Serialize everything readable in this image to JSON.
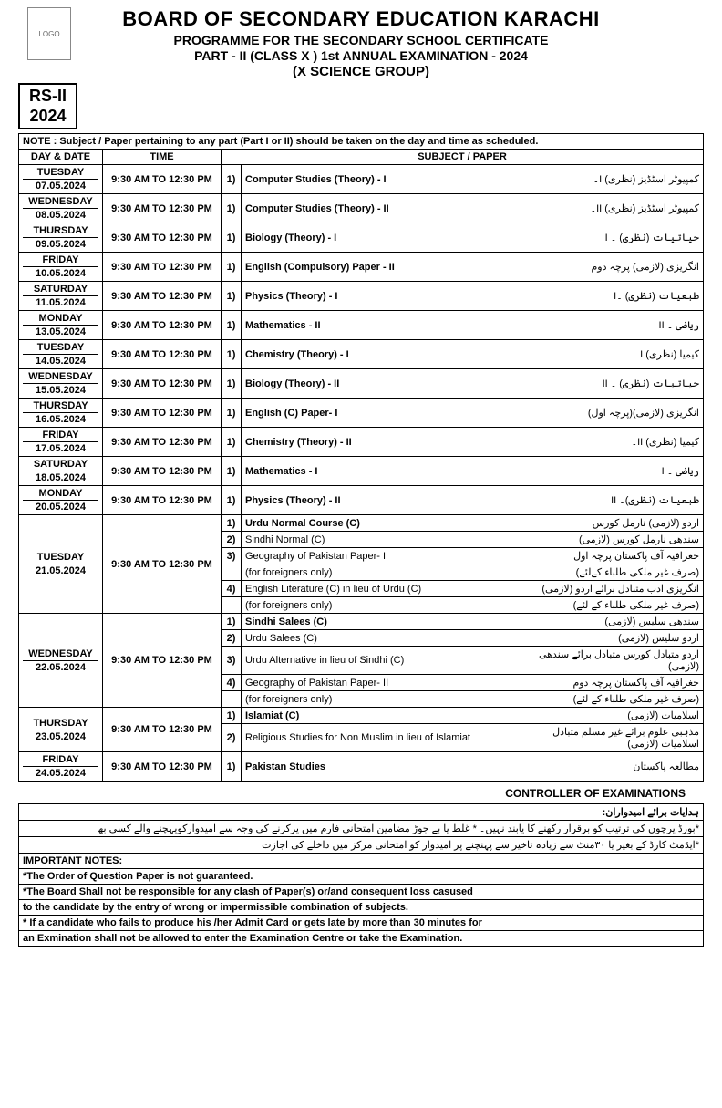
{
  "header": {
    "title": "BOARD OF SECONDARY EDUCATION KARACHI",
    "line2": "PROGRAMME FOR THE SECONDARY SCHOOL CERTIFICATE",
    "line3": "PART - II  (CLASS X ) 1st  ANNUAL EXAMINATION - 2024",
    "line4": "(X SCIENCE GROUP)",
    "rs1": "RS-II",
    "rs2": "2024",
    "logo_alt": "LOGO"
  },
  "note": "NOTE :  Subject / Paper pertaining to any part (Part I or II) should be taken on the day and time as scheduled.",
  "columns": {
    "daydate": "DAY & DATE",
    "time": "TIME",
    "subject": "SUBJECT / PAPER"
  },
  "rows": [
    {
      "day": "TUESDAY",
      "date": "07.05.2024",
      "time": "9:30 AM TO 12:30 PM",
      "papers": [
        {
          "n": "1)",
          "en": "Computer Studies (Theory) - I",
          "ur": "کمپیوٹر اسٹڈیز   (نظری) I۔"
        }
      ]
    },
    {
      "day": "WEDNESDAY",
      "date": "08.05.2024",
      "time": "9:30 AM TO 12:30 PM",
      "papers": [
        {
          "n": "1)",
          "en": "Computer Studies (Theory) - II",
          "ur": "کمپیوٹر اسٹڈیز   (نظری) II۔"
        }
      ]
    },
    {
      "day": "THURSDAY",
      "date": "09.05.2024",
      "time": "9:30 AM TO 12:30 PM",
      "papers": [
        {
          "n": "1)",
          "en": "Biology (Theory) - I",
          "ur": "حیاتیات   (نظری) ۔ I"
        }
      ]
    },
    {
      "day": "FRIDAY",
      "date": "10.05.2024",
      "time": "9:30 AM TO 12:30 PM",
      "papers": [
        {
          "n": "1)",
          "en": "English (Compulsory) Paper - II",
          "ur": "انگریزی (لازمی) پرچہ دوم"
        }
      ]
    },
    {
      "day": "SATURDAY",
      "date": "11.05.2024",
      "time": "9:30 AM TO 12:30 PM",
      "papers": [
        {
          "n": "1)",
          "en": "Physics (Theory) - I",
          "ur": "طبعیات (نظری) ۔I"
        }
      ]
    },
    {
      "day": "MONDAY",
      "date": "13.05.2024",
      "time": "9:30 AM TO 12:30 PM",
      "papers": [
        {
          "n": "1)",
          "en": "Mathematics - II",
          "ur": "ریاضی ۔ II"
        }
      ]
    },
    {
      "day": "TUESDAY",
      "date": "14.05.2024",
      "time": "9:30 AM TO 12:30 PM",
      "papers": [
        {
          "n": "1)",
          "en": "Chemistry (Theory) - I",
          "ur": "کیمیا   (نظری)  I۔"
        }
      ]
    },
    {
      "day": "WEDNESDAY",
      "date": "15.05.2024",
      "time": "9:30 AM TO 12:30 PM",
      "papers": [
        {
          "n": "1)",
          "en": "Biology (Theory) - II",
          "ur": "حیاتیات   (نظری) ۔ II"
        }
      ]
    },
    {
      "day": "THURSDAY",
      "date": "16.05.2024",
      "time": "9:30 AM TO 12:30 PM",
      "papers": [
        {
          "n": "1)",
          "en": "English (C) Paper- I",
          "ur": "انگریزی (لازمی)(پرچہ اول)"
        }
      ]
    },
    {
      "day": "FRIDAY",
      "date": "17.05.2024",
      "time": "9:30 AM TO 12:30 PM",
      "papers": [
        {
          "n": "1)",
          "en": "Chemistry (Theory) - II",
          "ur": "کیمیا   (نظری) II۔"
        }
      ]
    },
    {
      "day": "SATURDAY",
      "date": "18.05.2024",
      "time": "9:30 AM TO 12:30 PM",
      "papers": [
        {
          "n": "1)",
          "en": "Mathematics - I",
          "ur": "ریاضی ۔ I"
        }
      ]
    },
    {
      "day": "MONDAY",
      "date": "20.05.2024",
      "time": "9:30 AM TO 12:30 PM",
      "papers": [
        {
          "n": "1)",
          "en": "Physics (Theory) - II",
          "ur": "طبعیات (نظری)۔ II"
        }
      ]
    },
    {
      "day": "TUESDAY",
      "date": "21.05.2024",
      "time": "9:30 AM TO 12:30 PM",
      "papers": [
        {
          "n": "1)",
          "en": "Urdu Normal Course (C)",
          "ur": "اردو (لازمی) نارمل کورس"
        },
        {
          "n": "2)",
          "en": "Sindhi Normal (C)",
          "ur": "سندھی نارمل کورس (لازمی)",
          "small": true
        },
        {
          "n": "3)",
          "en": "Geography of Pakistan Paper- I",
          "ur": "جغرافیہ آف پاکستان پرچہ اول",
          "small": true
        },
        {
          "n": "",
          "en": "(for foreigners only)",
          "ur": "(صرف غیر ملکی طلباء کےلئے)",
          "small": true
        },
        {
          "n": "4)",
          "en": "English Literature (C) in lieu of Urdu (C)",
          "ur": "انگریزی ادب متبادل برائے اردو  (لازمی)",
          "small": true
        },
        {
          "n": "",
          "en": "(for foreigners only)",
          "ur": "(صرف غیر ملکی طلباء کے لئے)",
          "small": true
        }
      ]
    },
    {
      "day": "WEDNESDAY",
      "date": "22.05.2024",
      "time": "9:30 AM TO 12:30 PM",
      "papers": [
        {
          "n": "1)",
          "en": "Sindhi Salees (C)",
          "ur": "سندھی سلیس (لازمی)"
        },
        {
          "n": "2)",
          "en": "Urdu Salees (C)",
          "ur": "اردو سلیس  (لازمی)",
          "small": true
        },
        {
          "n": "3)",
          "en": "Urdu Alternative in lieu of Sindhi (C)",
          "ur": "اردو متبادل کورس متبادل  برائے سندھی  (لازمی)",
          "small": true
        },
        {
          "n": "4)",
          "en": "Geography of Pakistan Paper- II",
          "ur": "جغرافیہ آف پاکستان پرچہ  دوم",
          "small": true
        },
        {
          "n": "",
          "en": "(for foreigners only)",
          "ur": "(صرف غیر ملکی طلباء کے لئے)",
          "small": true
        }
      ]
    },
    {
      "day": "THURSDAY",
      "date": "23.05.2024",
      "time": "9:30 AM TO 12:30 PM",
      "papers": [
        {
          "n": "1)",
          "en": "Islamiat (C)",
          "ur": "اسلامیات (لازمی)"
        },
        {
          "n": "2)",
          "en": "Religious Studies for Non Muslim in lieu of Islamiat",
          "ur": "مذہبی علوم برائے غیر مسلم متبادل اسلامیات (لازمی)",
          "small": true
        }
      ]
    },
    {
      "day": "FRIDAY",
      "date": "24.05.2024",
      "time": "9:30 AM TO 12:30 PM",
      "papers": [
        {
          "n": "1)",
          "en": "Pakistan Studies",
          "ur": "مطالعہ پاکستان"
        }
      ]
    }
  ],
  "controller": "CONTROLLER OF EXAMINATIONS",
  "urdu_heading": "ہدایات برائے امیدواران:",
  "urdu_notes": [
    "*بورڈ پرچوں کی ترتیب کو برقرار رکھنے کا پابند نہیں۔   *  غلط یا بے جوڑ مضامین  امتحانی فارم میں پرکرنے   کی وجہ سے امیدوارکوپہچنے  والے کسی بھ",
    "*ایڈمٹ کارڈ کے بغیر یا  ۳۰منٹ سے زیادہ تاخیر سے پہنچنے پر امیدوار کو امتحانی مرکز میں داخلے کی اجازت"
  ],
  "important_label": "IMPORTANT NOTES:",
  "important_notes": [
    "*The Order of Question Paper is not guaranteed.",
    "*The Board Shall not be responsible for any clash of Paper(s) or/and consequent loss casused",
    "to the candidate by the entry of wrong or impermissible combination of subjects.",
    "* If a candidate who fails to produce his /her Admit Card or gets late by more than 30 minutes for",
    "an Exmination shall not be allowed to enter the Examination Centre or take the Examination."
  ]
}
